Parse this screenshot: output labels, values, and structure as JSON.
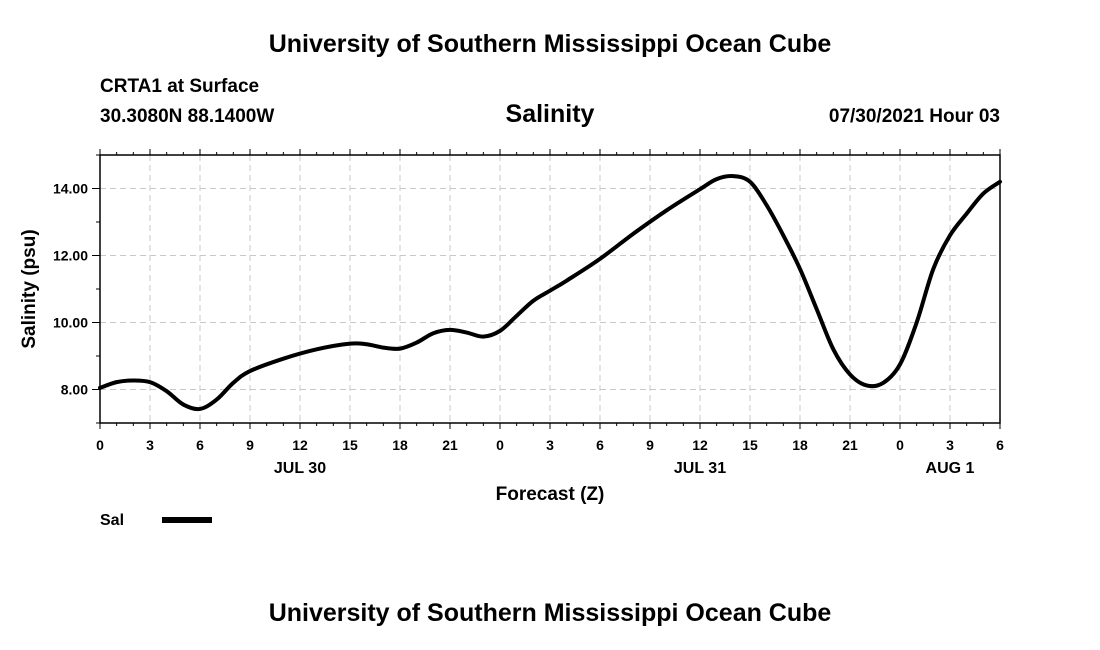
{
  "header": {
    "title": "University of Southern Mississippi Ocean Cube",
    "station": "CRTA1 at Surface",
    "coords": "30.3080N  88.1400W",
    "variable": "Salinity",
    "datetime": "07/30/2021 Hour 03"
  },
  "footer": {
    "title": "University of Southern Mississippi Ocean Cube"
  },
  "colors": {
    "line": "#000000",
    "grid": "#c8c8c8",
    "background": "#ffffff"
  },
  "chart_data": {
    "type": "line",
    "title": "Salinity",
    "xlabel": "Forecast (Z)",
    "ylabel": "Salinity (psu)",
    "xlim": [
      0,
      54
    ],
    "ylim": [
      7.0,
      15.0
    ],
    "x_tick_values": [
      0,
      3,
      6,
      9,
      12,
      15,
      18,
      21,
      24,
      27,
      30,
      33,
      36,
      39,
      42,
      45,
      48,
      51,
      54
    ],
    "x_tick_labels": [
      "0",
      "3",
      "6",
      "9",
      "12",
      "15",
      "18",
      "21",
      "0",
      "3",
      "6",
      "9",
      "12",
      "15",
      "18",
      "21",
      "0",
      "3",
      "6"
    ],
    "y_tick_values": [
      8,
      10,
      12,
      14
    ],
    "y_tick_labels": [
      "8.00",
      "10.00",
      "12.00",
      "14.00"
    ],
    "date_labels": [
      {
        "x": 12,
        "label": "JUL 30"
      },
      {
        "x": 36,
        "label": "JUL 31"
      },
      {
        "x": 51,
        "label": "AUG 1"
      }
    ],
    "grid": true,
    "legend": {
      "placement": "bottom-left",
      "label": "Sal"
    },
    "series": [
      {
        "name": "Sal",
        "x": [
          0,
          1,
          2,
          3,
          4,
          5,
          6,
          7,
          8,
          9,
          11,
          13,
          15,
          16,
          17,
          18,
          19,
          20,
          21,
          22,
          23,
          24,
          25,
          26,
          27,
          28,
          30,
          32,
          34,
          36,
          37,
          38,
          39,
          40,
          41,
          42,
          43,
          44,
          45,
          46,
          47,
          48,
          49,
          50,
          51,
          52,
          53,
          54
        ],
        "values": [
          8.05,
          8.22,
          8.27,
          8.22,
          7.95,
          7.55,
          7.42,
          7.7,
          8.2,
          8.55,
          8.92,
          9.2,
          9.37,
          9.35,
          9.25,
          9.22,
          9.4,
          9.68,
          9.78,
          9.7,
          9.58,
          9.75,
          10.2,
          10.65,
          10.95,
          11.25,
          11.9,
          12.65,
          13.35,
          13.98,
          14.28,
          14.37,
          14.2,
          13.5,
          12.6,
          11.6,
          10.4,
          9.2,
          8.45,
          8.12,
          8.2,
          8.75,
          10.0,
          11.6,
          12.6,
          13.25,
          13.85,
          14.2
        ]
      }
    ]
  }
}
